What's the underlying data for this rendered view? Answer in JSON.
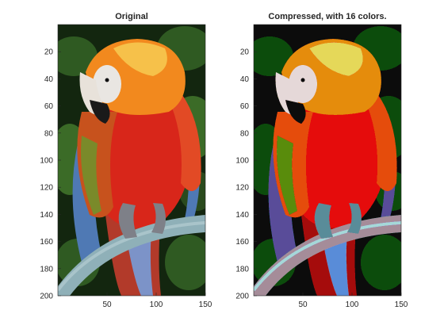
{
  "figure": {
    "panels": [
      {
        "title": "Original",
        "y_ticks": [
          "20",
          "40",
          "60",
          "80",
          "100",
          "120",
          "140",
          "160",
          "180",
          "200"
        ],
        "x_ticks": [
          "50",
          "100",
          "150"
        ],
        "image_description": "scarlet macaw parrot perched on a blue-grey ring against dark green foliage"
      },
      {
        "title": "Compressed, with 16 colors.",
        "y_ticks": [
          "20",
          "40",
          "60",
          "80",
          "100",
          "120",
          "140",
          "160",
          "180",
          "200"
        ],
        "x_ticks": [
          "50",
          "100",
          "150"
        ],
        "image_description": "same parrot rendered with a 16-colour palette (posterized)"
      }
    ],
    "colors": {
      "background": "#ffffff",
      "axis": "#262626",
      "foliage_dark": "#13260f",
      "foliage": "#2f5a22",
      "feather_red": "#d8261a",
      "feather_orange": "#f2891e",
      "feather_yellow": "#f6c14a",
      "face_white": "#e9e6e2",
      "beak_dark": "#1a1a1a",
      "wing_blue": "#4f79b4",
      "perch": "#8fb0b8"
    }
  }
}
